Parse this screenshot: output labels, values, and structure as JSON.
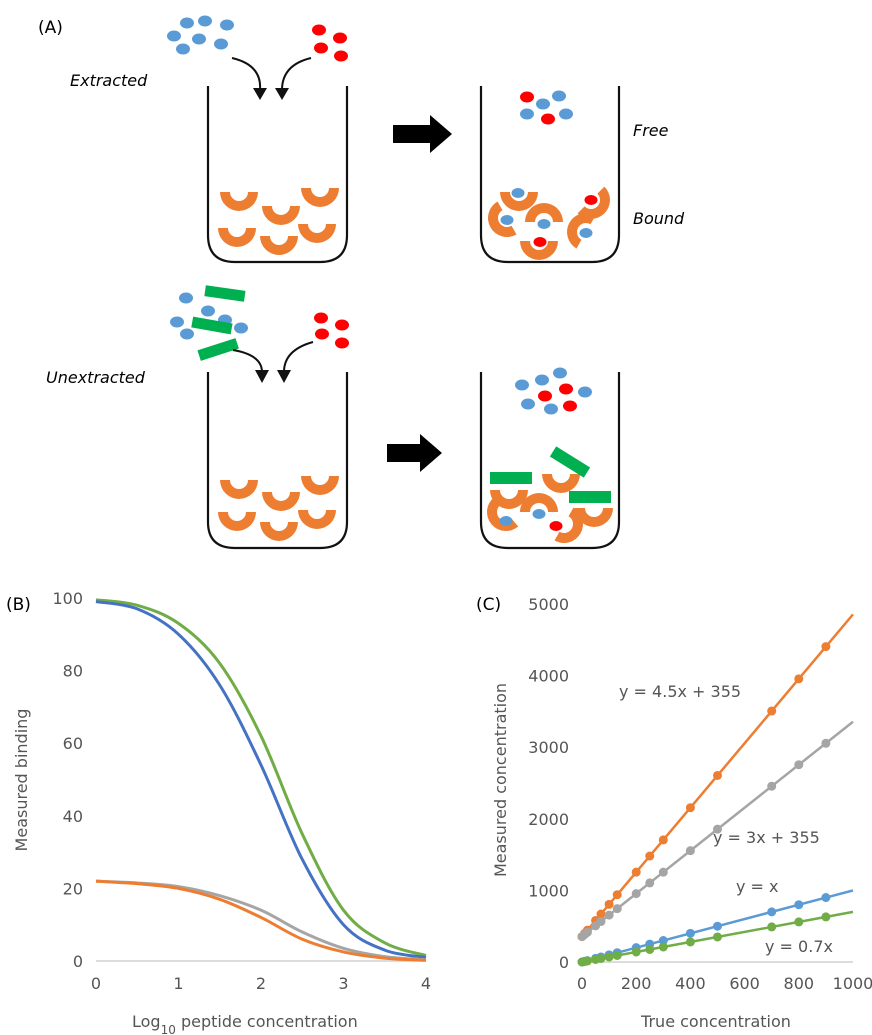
{
  "panel_a": {
    "label": "(A)",
    "extracted_label": "Extracted",
    "unextracted_label": "Unextracted",
    "free_label": "Free",
    "bound_label": "Bound"
  },
  "panel_b": {
    "label": "(B)"
  },
  "panel_c": {
    "label": "(C)",
    "annotations": [
      "y = 4.5x + 355",
      "y = 3x + 355",
      "y = x",
      "y = 0.7x"
    ]
  },
  "colors": {
    "blue_dot": "#5b9bd5",
    "red_dot": "#ff0000",
    "orange": "#ed7d31",
    "green": "#00b050",
    "blue_line": "#4472c4",
    "green_line": "#70ad47",
    "gray_line": "#a5a5a5",
    "orange_line": "#ed7d31",
    "light_blue_line": "#5b9bd5"
  },
  "chart_data": [
    {
      "type": "line",
      "ylabel": "Measured binding",
      "xlabel_prefix": "Log",
      "xlabel_sub": "10",
      "xlabel_suffix": " peptide concentration",
      "xlim": [
        0,
        4
      ],
      "ylim": [
        0,
        100
      ],
      "xticks": [
        0,
        1,
        2,
        3,
        4
      ],
      "yticks": [
        0,
        20,
        40,
        60,
        80,
        100
      ],
      "grid": false,
      "series": [
        {
          "color": "#70ad47",
          "x": [
            0,
            0.5,
            1,
            1.5,
            2,
            2.5,
            3,
            3.5,
            4
          ],
          "values": [
            99.5,
            98,
            93,
            82,
            62,
            35,
            14,
            5,
            1.5
          ]
        },
        {
          "color": "#4472c4",
          "x": [
            0,
            0.5,
            1,
            1.5,
            2,
            2.5,
            3,
            3.5,
            4
          ],
          "values": [
            99,
            97,
            90,
            76,
            54,
            28,
            10,
            3,
            1
          ]
        },
        {
          "color": "#a5a5a5",
          "x": [
            0,
            0.5,
            1,
            1.5,
            2,
            2.5,
            3,
            3.5,
            4
          ],
          "values": [
            22,
            21.5,
            20.5,
            18,
            14,
            8,
            3.5,
            1.2,
            0.3
          ]
        },
        {
          "color": "#ed7d31",
          "x": [
            0,
            0.5,
            1,
            1.5,
            2,
            2.5,
            3,
            3.5,
            4
          ],
          "values": [
            22,
            21.3,
            20,
            17,
            12,
            6,
            2.5,
            0.8,
            0.2
          ]
        }
      ]
    },
    {
      "type": "scatter",
      "ylabel": "Measured concentration",
      "xlabel": "True concentration",
      "xlim": [
        0,
        1000
      ],
      "ylim": [
        0,
        5000
      ],
      "xticks": [
        0,
        200,
        400,
        600,
        800,
        1000
      ],
      "yticks": [
        0,
        1000,
        2000,
        3000,
        4000,
        5000
      ],
      "grid": false,
      "series": [
        {
          "color": "#ed7d31",
          "slope": 4.5,
          "intercept": 355,
          "x": [
            0,
            10,
            20,
            50,
            70,
            100,
            130,
            200,
            250,
            300,
            400,
            500,
            700,
            800,
            900
          ]
        },
        {
          "color": "#a5a5a5",
          "slope": 3,
          "intercept": 355,
          "x": [
            0,
            10,
            20,
            50,
            70,
            100,
            130,
            200,
            250,
            300,
            400,
            500,
            700,
            800,
            900
          ]
        },
        {
          "color": "#5b9bd5",
          "slope": 1,
          "intercept": 0,
          "x": [
            0,
            10,
            20,
            50,
            70,
            100,
            130,
            200,
            250,
            300,
            400,
            500,
            700,
            800,
            900
          ]
        },
        {
          "color": "#70ad47",
          "slope": 0.7,
          "intercept": 0,
          "x": [
            0,
            10,
            20,
            50,
            70,
            100,
            130,
            200,
            250,
            300,
            400,
            500,
            700,
            800,
            900
          ]
        }
      ]
    }
  ]
}
